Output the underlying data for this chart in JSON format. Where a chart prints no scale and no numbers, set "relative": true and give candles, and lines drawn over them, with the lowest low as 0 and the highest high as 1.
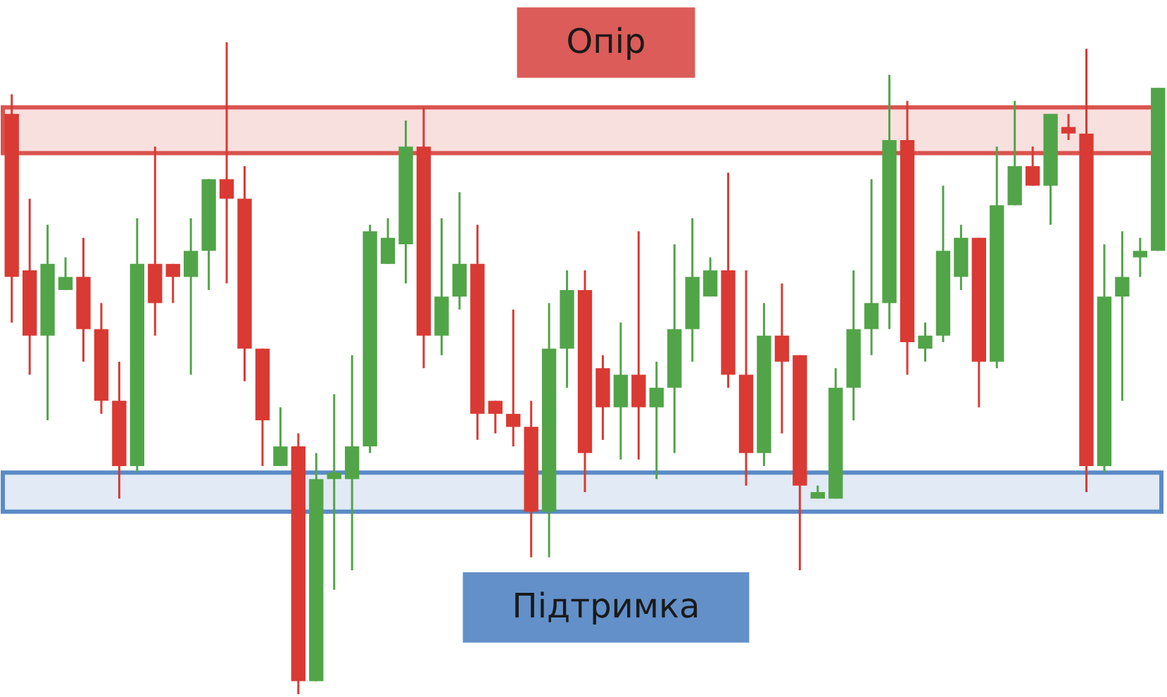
{
  "chart_data": {
    "type": "candlestick",
    "relative": true,
    "categories": [
      null,
      null,
      null,
      null,
      null,
      null,
      null,
      null,
      null,
      null,
      null,
      null,
      null,
      null,
      null,
      null,
      null,
      null,
      null,
      null,
      null,
      null,
      null,
      null,
      null,
      null,
      null,
      null,
      null,
      null,
      null,
      null,
      null,
      null,
      null,
      null,
      null,
      null,
      null,
      null,
      null,
      null,
      null,
      null,
      null,
      null,
      null,
      null,
      null,
      null,
      null,
      null,
      null,
      null,
      null,
      null,
      null,
      null,
      null,
      null,
      null,
      null,
      null,
      null,
      null
    ],
    "ohlc": [
      [
        0.89,
        0.92,
        0.57,
        0.64
      ],
      [
        0.65,
        0.76,
        0.49,
        0.55
      ],
      [
        0.55,
        0.72,
        0.42,
        0.66
      ],
      [
        0.62,
        0.67,
        0.62,
        0.64
      ],
      [
        0.64,
        0.7,
        0.51,
        0.56
      ],
      [
        0.56,
        0.6,
        0.43,
        0.45
      ],
      [
        0.45,
        0.51,
        0.3,
        0.35
      ],
      [
        0.35,
        0.73,
        0.34,
        0.66
      ],
      [
        0.66,
        0.84,
        0.55,
        0.6
      ],
      [
        0.66,
        0.66,
        0.6,
        0.64
      ],
      [
        0.64,
        0.73,
        0.49,
        0.68
      ],
      [
        0.68,
        0.79,
        0.62,
        0.79
      ],
      [
        0.79,
        1,
        0.63,
        0.76
      ],
      [
        0.76,
        0.81,
        0.48,
        0.53
      ],
      [
        0.53,
        0.53,
        0.35,
        0.42
      ],
      [
        0.35,
        0.44,
        0.35,
        0.38
      ],
      [
        0.38,
        0.4,
        0,
        0.02
      ],
      [
        0.02,
        0.37,
        0.02,
        0.33
      ],
      [
        0.33,
        0.46,
        0.16,
        0.34
      ],
      [
        0.33,
        0.52,
        0.19,
        0.38
      ],
      [
        0.38,
        0.72,
        0.37,
        0.71
      ],
      [
        0.66,
        0.73,
        0.66,
        0.7
      ],
      [
        0.69,
        0.88,
        0.63,
        0.84
      ],
      [
        0.84,
        0.9,
        0.5,
        0.55
      ],
      [
        0.55,
        0.73,
        0.52,
        0.61
      ],
      [
        0.61,
        0.77,
        0.59,
        0.66
      ],
      [
        0.66,
        0.72,
        0.39,
        0.43
      ],
      [
        0.45,
        0.45,
        0.4,
        0.43
      ],
      [
        0.43,
        0.59,
        0.38,
        0.41
      ],
      [
        0.41,
        0.45,
        0.21,
        0.28
      ],
      [
        0.28,
        0.6,
        0.21,
        0.53
      ],
      [
        0.53,
        0.65,
        0.47,
        0.62
      ],
      [
        0.62,
        0.65,
        0.31,
        0.37
      ],
      [
        0.5,
        0.52,
        0.39,
        0.44
      ],
      [
        0.44,
        0.57,
        0.36,
        0.49
      ],
      [
        0.49,
        0.71,
        0.36,
        0.44
      ],
      [
        0.44,
        0.51,
        0.33,
        0.47
      ],
      [
        0.47,
        0.69,
        0.37,
        0.56
      ],
      [
        0.56,
        0.73,
        0.51,
        0.64
      ],
      [
        0.61,
        0.67,
        0.61,
        0.65
      ],
      [
        0.65,
        0.8,
        0.47,
        0.49
      ],
      [
        0.49,
        0.65,
        0.32,
        0.37
      ],
      [
        0.37,
        0.6,
        0.35,
        0.55
      ],
      [
        0.55,
        0.63,
        0.4,
        0.51
      ],
      [
        0.52,
        0.52,
        0.19,
        0.32
      ],
      [
        0.3,
        0.32,
        0.3,
        0.31
      ],
      [
        0.3,
        0.5,
        0.3,
        0.47
      ],
      [
        0.47,
        0.65,
        0.42,
        0.56
      ],
      [
        0.56,
        0.79,
        0.52,
        0.6
      ],
      [
        0.6,
        0.95,
        0.56,
        0.85
      ],
      [
        0.85,
        0.91,
        0.49,
        0.54
      ],
      [
        0.53,
        0.57,
        0.51,
        0.55
      ],
      [
        0.55,
        0.78,
        0.54,
        0.68
      ],
      [
        0.64,
        0.72,
        0.62,
        0.7
      ],
      [
        0.7,
        0.7,
        0.44,
        0.51
      ],
      [
        0.51,
        0.84,
        0.5,
        0.75
      ],
      [
        0.75,
        0.91,
        0.75,
        0.81
      ],
      [
        0.81,
        0.84,
        0.78,
        0.78
      ],
      [
        0.78,
        0.89,
        0.72,
        0.89
      ],
      [
        0.87,
        0.89,
        0.85,
        0.86
      ],
      [
        0.86,
        0.99,
        0.31,
        0.35
      ],
      [
        0.35,
        0.69,
        0.34,
        0.61
      ],
      [
        0.61,
        0.71,
        0.45,
        0.64
      ],
      [
        0.67,
        0.7,
        0.64,
        0.68
      ],
      [
        0.68,
        0.93,
        0.68,
        0.93
      ]
    ],
    "colors": [
      "#d93a33",
      "#d93a33",
      "#52a448",
      "#52a448",
      "#d93a33",
      "#d93a33",
      "#d93a33",
      "#52a448",
      "#d93a33",
      "#d93a33",
      "#52a448",
      "#52a448",
      "#d93a33",
      "#d93a33",
      "#d93a33",
      "#52a448",
      "#d93a33",
      "#52a448",
      "#52a448",
      "#52a448",
      "#52a448",
      "#52a448",
      "#52a448",
      "#d93a33",
      "#52a448",
      "#52a448",
      "#d93a33",
      "#d93a33",
      "#d93a33",
      "#d93a33",
      "#52a448",
      "#52a448",
      "#d93a33",
      "#d93a33",
      "#52a448",
      "#d93a33",
      "#52a448",
      "#52a448",
      "#52a448",
      "#52a448",
      "#d93a33",
      "#d93a33",
      "#52a448",
      "#d93a33",
      "#d93a33",
      "#52a448",
      "#52a448",
      "#52a448",
      "#52a448",
      "#52a448",
      "#d93a33",
      "#52a448",
      "#52a448",
      "#52a448",
      "#d93a33",
      "#52a448",
      "#52a448",
      "#d93a33",
      "#52a448",
      "#d93a33",
      "#d93a33",
      "#52a448",
      "#52a448",
      "#52a448",
      "#52a448"
    ],
    "bands": [
      {
        "axis": "y",
        "from": 0.83,
        "to": 0.9,
        "label": "Опір",
        "color": "#d9534f"
      },
      {
        "axis": "y",
        "from": 0.28,
        "to": 0.34,
        "label": "Підтримка",
        "color": "#5b8ac6"
      }
    ]
  }
}
